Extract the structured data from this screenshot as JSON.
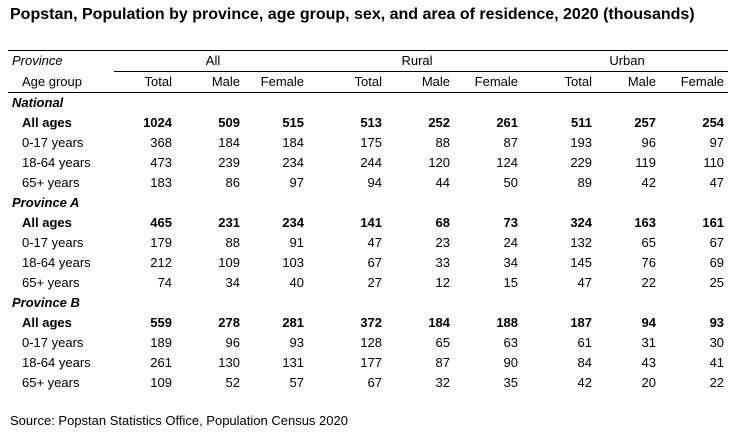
{
  "title": "Popstan, Population by province, age group, sex, and area of residence, 2020 (thousands)",
  "header": {
    "stub_top": "Province",
    "stub_bottom": "Age group",
    "groups": [
      "All",
      "Rural",
      "Urban"
    ],
    "columns": [
      "Total",
      "Male",
      "Female",
      "Total",
      "Male",
      "Female",
      "Total",
      "Male",
      "Female"
    ]
  },
  "sections": [
    {
      "name": "National",
      "rows": [
        {
          "label": "All ages",
          "values": [
            "1024",
            "509",
            "515",
            "513",
            "252",
            "261",
            "511",
            "257",
            "254"
          ]
        },
        {
          "label": "0-17 years",
          "values": [
            "368",
            "184",
            "184",
            "175",
            "88",
            "87",
            "193",
            "96",
            "97"
          ]
        },
        {
          "label": "18-64 years",
          "values": [
            "473",
            "239",
            "234",
            "244",
            "120",
            "124",
            "229",
            "119",
            "110"
          ]
        },
        {
          "label": "65+ years",
          "values": [
            "183",
            "86",
            "97",
            "94",
            "44",
            "50",
            "89",
            "42",
            "47"
          ]
        }
      ]
    },
    {
      "name": "Province A",
      "rows": [
        {
          "label": "All ages",
          "values": [
            "465",
            "231",
            "234",
            "141",
            "68",
            "73",
            "324",
            "163",
            "161"
          ]
        },
        {
          "label": "0-17 years",
          "values": [
            "179",
            "88",
            "91",
            "47",
            "23",
            "24",
            "132",
            "65",
            "67"
          ]
        },
        {
          "label": "18-64 years",
          "values": [
            "212",
            "109",
            "103",
            "67",
            "33",
            "34",
            "145",
            "76",
            "69"
          ]
        },
        {
          "label": "65+ years",
          "values": [
            "74",
            "34",
            "40",
            "27",
            "12",
            "15",
            "47",
            "22",
            "25"
          ]
        }
      ]
    },
    {
      "name": "Province B",
      "rows": [
        {
          "label": "All ages",
          "values": [
            "559",
            "278",
            "281",
            "372",
            "184",
            "188",
            "187",
            "94",
            "93"
          ]
        },
        {
          "label": "0-17 years",
          "values": [
            "189",
            "96",
            "93",
            "128",
            "65",
            "63",
            "61",
            "31",
            "30"
          ]
        },
        {
          "label": "18-64 years",
          "values": [
            "261",
            "130",
            "131",
            "177",
            "87",
            "90",
            "84",
            "43",
            "41"
          ]
        },
        {
          "label": "65+ years",
          "values": [
            "109",
            "52",
            "57",
            "67",
            "32",
            "35",
            "42",
            "20",
            "22"
          ]
        }
      ]
    }
  ],
  "source": "Source: Popstan Statistics Office, Population Census 2020"
}
